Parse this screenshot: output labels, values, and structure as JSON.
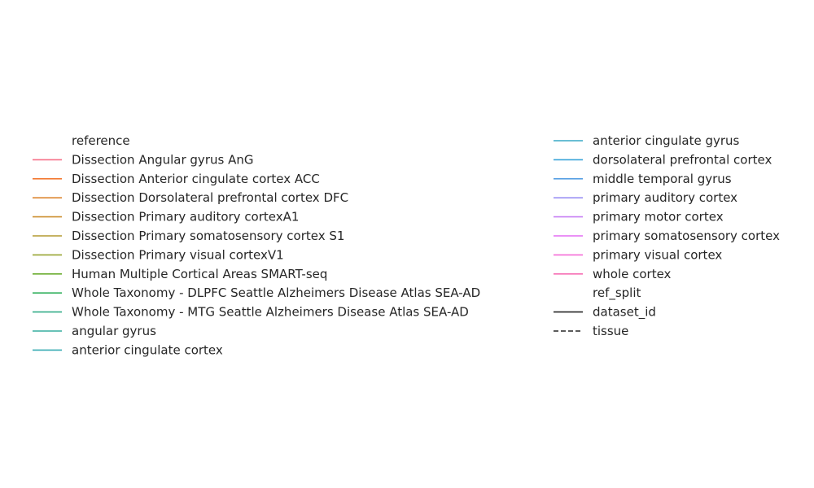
{
  "chart_data": {
    "type": "line",
    "title": "",
    "xlabel": "",
    "ylabel": "",
    "axes_visible": false,
    "series": [],
    "legend": {
      "placement": "center",
      "columns": [
        [
          {
            "label": "reference",
            "kind": "header"
          },
          {
            "label": "Dissection Angular gyrus AnG",
            "color": "#f77189",
            "style": "solid"
          },
          {
            "label": "Dissection Anterior cingulate cortex ACC",
            "color": "#f37932",
            "style": "solid"
          },
          {
            "label": "Dissection Dorsolateral prefrontal cortex DFC",
            "color": "#dd8731",
            "style": "solid"
          },
          {
            "label": "Dissection Primary auditory cortexA1",
            "color": "#cc8f31",
            "style": "solid"
          },
          {
            "label": "Dissection Primary somatosensory cortex S1",
            "color": "#b49a31",
            "style": "solid"
          },
          {
            "label": "Dissection Primary visual cortexV1",
            "color": "#97a431",
            "style": "solid"
          },
          {
            "label": "Human Multiple Cortical Areas SMART-seq",
            "color": "#6cad32",
            "style": "solid"
          },
          {
            "label": "Whole Taxonomy - DLPFC Seattle Alzheimers Disease Atlas SEA-AD",
            "color": "#33b05d",
            "style": "solid"
          },
          {
            "label": "Whole Taxonomy - MTG Seattle Alzheimers Disease Atlas SEA-AD",
            "color": "#34ae89",
            "style": "solid"
          },
          {
            "label": "angular gyrus",
            "color": "#36ad9f",
            "style": "solid"
          },
          {
            "label": "anterior cingulate cortex",
            "color": "#37abb3",
            "style": "solid"
          }
        ],
        [
          {
            "label": "anterior cingulate gyrus",
            "color": "#38a9c5",
            "style": "solid"
          },
          {
            "label": "dorsolateral prefrontal cortex",
            "color": "#3aa5d9",
            "style": "solid"
          },
          {
            "label": "middle temporal gyrus",
            "color": "#58a0e4",
            "style": "solid"
          },
          {
            "label": "primary auditory cortex",
            "color": "#9b91f3",
            "style": "solid"
          },
          {
            "label": "primary motor cortex",
            "color": "#c880f4",
            "style": "solid"
          },
          {
            "label": "primary somatosensory cortex",
            "color": "#e46df4",
            "style": "solid"
          },
          {
            "label": "primary visual cortex",
            "color": "#f56bd7",
            "style": "solid"
          },
          {
            "label": "whole cortex",
            "color": "#f66fb4",
            "style": "solid"
          },
          {
            "label": "ref_split",
            "kind": "header"
          },
          {
            "label": "dataset_id",
            "color": "#262626",
            "style": "solid"
          },
          {
            "label": "tissue",
            "color": "#262626",
            "style": "dashed"
          }
        ]
      ]
    }
  }
}
